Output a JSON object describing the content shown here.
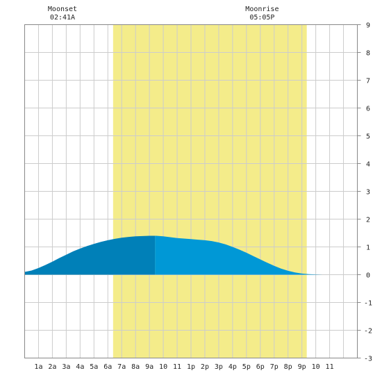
{
  "chart_data": {
    "type": "area",
    "title": "",
    "xlabel": "",
    "ylabel": "",
    "xlim": [
      0,
      24
    ],
    "ylim": [
      -3,
      9
    ],
    "grid": true,
    "x_ticks": [
      {
        "x": 1,
        "label": "1a"
      },
      {
        "x": 2,
        "label": "2a"
      },
      {
        "x": 3,
        "label": "3a"
      },
      {
        "x": 4,
        "label": "4a"
      },
      {
        "x": 5,
        "label": "5a"
      },
      {
        "x": 6,
        "label": "6a"
      },
      {
        "x": 7,
        "label": "7a"
      },
      {
        "x": 8,
        "label": "8a"
      },
      {
        "x": 9,
        "label": "9a"
      },
      {
        "x": 10,
        "label": "10"
      },
      {
        "x": 11,
        "label": "11"
      },
      {
        "x": 12,
        "label": "1p"
      },
      {
        "x": 13,
        "label": "2p"
      },
      {
        "x": 14,
        "label": "3p"
      },
      {
        "x": 15,
        "label": "4p"
      },
      {
        "x": 16,
        "label": "5p"
      },
      {
        "x": 17,
        "label": "6p"
      },
      {
        "x": 18,
        "label": "7p"
      },
      {
        "x": 19,
        "label": "8p"
      },
      {
        "x": 20,
        "label": "9p"
      },
      {
        "x": 21,
        "label": "10"
      },
      {
        "x": 22,
        "label": "11"
      }
    ],
    "y_ticks": [
      "-3",
      "-2",
      "-1",
      "0",
      "1",
      "2",
      "3",
      "4",
      "5",
      "6",
      "7",
      "8",
      "9"
    ],
    "daylight": {
      "start": 6.38,
      "end": 20.35,
      "color": "#f4ec8a"
    },
    "split_x": 9.4,
    "series": [
      {
        "x": [
          0,
          0.5,
          1,
          1.5,
          2,
          2.5,
          3,
          3.5,
          4,
          4.5,
          5,
          5.5,
          6,
          6.5,
          7,
          7.5,
          8,
          8.5,
          9,
          9.5,
          10,
          10.5,
          11,
          11.5,
          12,
          12.5,
          13,
          13.5,
          14,
          14.5,
          15,
          15.5,
          16,
          16.5,
          17,
          17.5,
          18,
          18.5,
          19,
          19.5,
          20,
          20.5,
          21,
          21.5,
          22,
          22.5,
          23,
          23.5,
          24
        ],
        "y": [
          0.1,
          0.15,
          0.24,
          0.35,
          0.47,
          0.6,
          0.72,
          0.84,
          0.94,
          1.03,
          1.11,
          1.18,
          1.24,
          1.29,
          1.33,
          1.36,
          1.38,
          1.39,
          1.4,
          1.4,
          1.38,
          1.35,
          1.32,
          1.3,
          1.28,
          1.26,
          1.24,
          1.21,
          1.16,
          1.09,
          1.0,
          0.9,
          0.79,
          0.67,
          0.55,
          0.43,
          0.32,
          0.22,
          0.14,
          0.08,
          0.04,
          0.02,
          0.01,
          0.0,
          0.0,
          0.0,
          0.0,
          0.0,
          0.0
        ]
      }
    ],
    "colors": {
      "before_split": "#0080b8",
      "after_split": "#0098d6",
      "grid": "#cccccc",
      "border": "#888888"
    },
    "annotations": [
      {
        "label": "Moonset",
        "time": "02:41A",
        "x": 2.68
      },
      {
        "label": "Moonrise",
        "time": "05:05P",
        "x": 17.08
      }
    ]
  }
}
